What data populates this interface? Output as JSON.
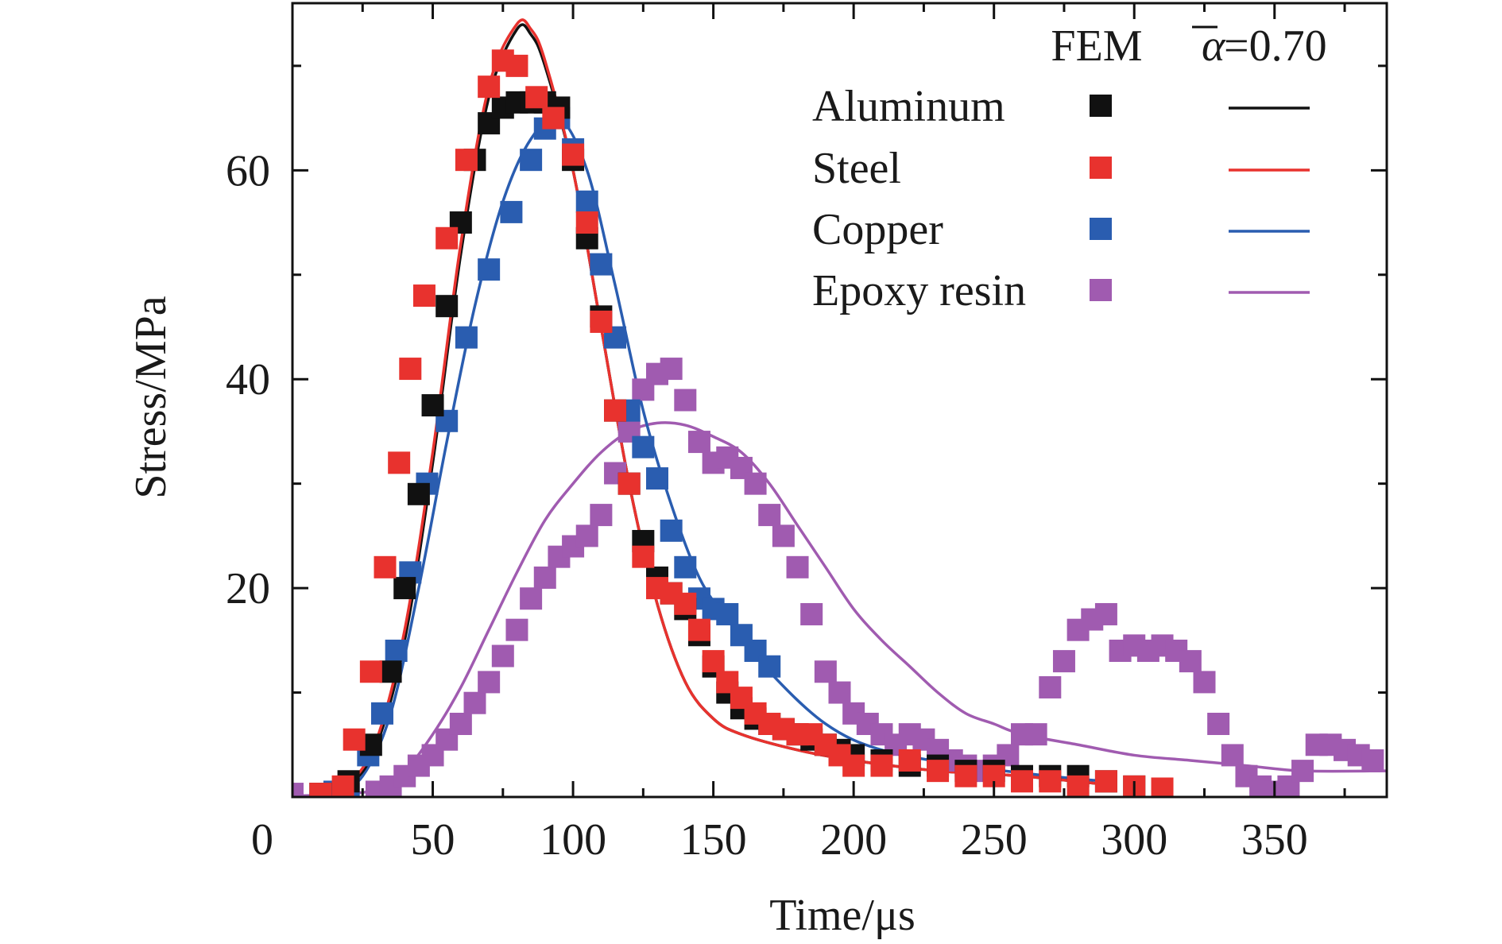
{
  "chart_data": {
    "type": "scatter",
    "xlabel": "Time/μs",
    "ylabel": "Stress/MPa",
    "xlim": [
      0,
      390
    ],
    "ylim": [
      0,
      76
    ],
    "x_ticks": [
      0,
      50,
      100,
      150,
      200,
      250,
      300,
      350
    ],
    "y_ticks": [
      20,
      40,
      60
    ],
    "y_minor_ticks": [
      10,
      30,
      50,
      70
    ],
    "x_minor_ticks": [
      25,
      75,
      125,
      175,
      225,
      275,
      325,
      375
    ],
    "legend": {
      "placement": "top-right",
      "header_experiment": "FEM",
      "header_fit": "=0.70",
      "header_fit_symbol": "α"
    },
    "series": [
      {
        "name": "Aluminum",
        "color": "#111111",
        "points": [
          [
            10,
            0.3
          ],
          [
            20,
            1.5
          ],
          [
            28,
            5
          ],
          [
            35,
            12
          ],
          [
            40,
            20
          ],
          [
            45,
            29
          ],
          [
            50,
            37.5
          ],
          [
            55,
            47
          ],
          [
            60,
            55
          ],
          [
            65,
            61
          ],
          [
            70,
            64.5
          ],
          [
            75,
            66
          ],
          [
            80,
            66.5
          ],
          [
            85,
            66.5
          ],
          [
            90,
            66.5
          ],
          [
            95,
            66
          ],
          [
            100,
            61
          ],
          [
            105,
            53.5
          ],
          [
            110,
            46
          ],
          [
            115,
            37
          ],
          [
            120,
            30
          ],
          [
            125,
            24.5
          ],
          [
            130,
            21
          ],
          [
            135,
            19.5
          ],
          [
            140,
            18
          ],
          [
            145,
            15.5
          ],
          [
            150,
            12.5
          ],
          [
            155,
            10
          ],
          [
            160,
            8.5
          ],
          [
            165,
            7.5
          ],
          [
            170,
            7
          ],
          [
            175,
            6.5
          ],
          [
            180,
            6
          ],
          [
            185,
            5.5
          ],
          [
            190,
            5
          ],
          [
            195,
            4.5
          ],
          [
            200,
            4
          ],
          [
            210,
            3.5
          ],
          [
            220,
            3
          ],
          [
            230,
            3
          ],
          [
            240,
            2.5
          ],
          [
            250,
            2.5
          ],
          [
            260,
            2
          ],
          [
            270,
            2
          ],
          [
            280,
            2
          ],
          [
            290,
            1.5
          ],
          [
            300,
            1
          ]
        ],
        "fit": [
          [
            10,
            0.2
          ],
          [
            20,
            1
          ],
          [
            30,
            5
          ],
          [
            40,
            15
          ],
          [
            50,
            32
          ],
          [
            60,
            52
          ],
          [
            70,
            67
          ],
          [
            80,
            73.5
          ],
          [
            85,
            73
          ],
          [
            90,
            70
          ],
          [
            100,
            60
          ],
          [
            110,
            45
          ],
          [
            120,
            30
          ],
          [
            130,
            18.5
          ],
          [
            140,
            11
          ],
          [
            150,
            7.5
          ],
          [
            160,
            6
          ],
          [
            180,
            4.5
          ],
          [
            200,
            3.5
          ],
          [
            230,
            2.5
          ],
          [
            260,
            2
          ],
          [
            290,
            1.2
          ]
        ]
      },
      {
        "name": "Steel",
        "color": "#e8322e",
        "points": [
          [
            10,
            0.3
          ],
          [
            18,
            1
          ],
          [
            22,
            5.5
          ],
          [
            28,
            12
          ],
          [
            33,
            22
          ],
          [
            38,
            32
          ],
          [
            42,
            41
          ],
          [
            47,
            48
          ],
          [
            55,
            53.5
          ],
          [
            62,
            61
          ],
          [
            70,
            68
          ],
          [
            75,
            70.5
          ],
          [
            80,
            70
          ],
          [
            87,
            67
          ],
          [
            93,
            65
          ],
          [
            100,
            61.5
          ],
          [
            105,
            55
          ],
          [
            110,
            45.5
          ],
          [
            115,
            37
          ],
          [
            120,
            30
          ],
          [
            125,
            23
          ],
          [
            130,
            20
          ],
          [
            135,
            19.5
          ],
          [
            140,
            18.5
          ],
          [
            145,
            16
          ],
          [
            150,
            13
          ],
          [
            155,
            11
          ],
          [
            160,
            9.5
          ],
          [
            165,
            8
          ],
          [
            170,
            7
          ],
          [
            175,
            6.5
          ],
          [
            180,
            6
          ],
          [
            185,
            6
          ],
          [
            190,
            5
          ],
          [
            195,
            4
          ],
          [
            200,
            3
          ],
          [
            210,
            3
          ],
          [
            220,
            3.5
          ],
          [
            230,
            2.5
          ],
          [
            240,
            2
          ],
          [
            250,
            2
          ],
          [
            260,
            1.5
          ],
          [
            270,
            1.5
          ],
          [
            280,
            1
          ],
          [
            290,
            1.5
          ],
          [
            300,
            1
          ],
          [
            310,
            0.8
          ]
        ],
        "fit": [
          [
            10,
            0.2
          ],
          [
            20,
            1.2
          ],
          [
            30,
            5.5
          ],
          [
            40,
            16
          ],
          [
            50,
            33
          ],
          [
            60,
            53
          ],
          [
            70,
            68
          ],
          [
            80,
            74
          ],
          [
            85,
            73.5
          ],
          [
            90,
            70.5
          ],
          [
            100,
            60
          ],
          [
            110,
            45
          ],
          [
            120,
            30
          ],
          [
            130,
            18.5
          ],
          [
            140,
            11
          ],
          [
            150,
            7.5
          ],
          [
            160,
            6
          ],
          [
            180,
            4.5
          ],
          [
            200,
            3.5
          ],
          [
            230,
            2.5
          ],
          [
            260,
            2
          ],
          [
            290,
            1.2
          ]
        ]
      },
      {
        "name": "Copper",
        "color": "#2a5db0",
        "points": [
          [
            15,
            0.5
          ],
          [
            20,
            1
          ],
          [
            27,
            4
          ],
          [
            32,
            8
          ],
          [
            37,
            14
          ],
          [
            42,
            21.5
          ],
          [
            48,
            30
          ],
          [
            55,
            36
          ],
          [
            62,
            44
          ],
          [
            70,
            50.5
          ],
          [
            78,
            56
          ],
          [
            85,
            61
          ],
          [
            90,
            64
          ],
          [
            95,
            65
          ],
          [
            100,
            62
          ],
          [
            105,
            57
          ],
          [
            110,
            51
          ],
          [
            115,
            44
          ],
          [
            120,
            37
          ],
          [
            125,
            33.5
          ],
          [
            130,
            30.5
          ],
          [
            135,
            25.5
          ],
          [
            140,
            22
          ],
          [
            145,
            19
          ],
          [
            150,
            18
          ],
          [
            155,
            17.5
          ],
          [
            160,
            15.5
          ],
          [
            165,
            14
          ],
          [
            170,
            12.5
          ]
        ],
        "fit": [
          [
            15,
            0.3
          ],
          [
            25,
            2
          ],
          [
            35,
            8
          ],
          [
            45,
            20
          ],
          [
            55,
            34
          ],
          [
            65,
            47
          ],
          [
            75,
            57
          ],
          [
            85,
            63
          ],
          [
            95,
            65
          ],
          [
            105,
            60
          ],
          [
            115,
            49
          ],
          [
            125,
            37
          ],
          [
            135,
            28
          ],
          [
            145,
            21
          ],
          [
            155,
            17
          ],
          [
            170,
            12
          ],
          [
            190,
            7
          ],
          [
            210,
            4.5
          ],
          [
            240,
            3
          ],
          [
            270,
            2
          ],
          [
            290,
            1.5
          ]
        ]
      },
      {
        "name": "Epoxy resin",
        "color": "#a05bb0",
        "points": [
          [
            0,
            0.3
          ],
          [
            10,
            0.3
          ],
          [
            20,
            0.3
          ],
          [
            30,
            0.5
          ],
          [
            35,
            1
          ],
          [
            40,
            2
          ],
          [
            45,
            3
          ],
          [
            50,
            4
          ],
          [
            55,
            5.5
          ],
          [
            60,
            7
          ],
          [
            65,
            9
          ],
          [
            70,
            11
          ],
          [
            75,
            13.5
          ],
          [
            80,
            16
          ],
          [
            85,
            19
          ],
          [
            90,
            21
          ],
          [
            95,
            23
          ],
          [
            100,
            24
          ],
          [
            105,
            25
          ],
          [
            110,
            27
          ],
          [
            115,
            31
          ],
          [
            120,
            35
          ],
          [
            125,
            39
          ],
          [
            130,
            40.5
          ],
          [
            135,
            41
          ],
          [
            140,
            38
          ],
          [
            145,
            34
          ],
          [
            150,
            32
          ],
          [
            155,
            32.5
          ],
          [
            160,
            31.5
          ],
          [
            165,
            30
          ],
          [
            170,
            27
          ],
          [
            175,
            25
          ],
          [
            180,
            22
          ],
          [
            185,
            17.5
          ],
          [
            190,
            12
          ],
          [
            195,
            10
          ],
          [
            200,
            8
          ],
          [
            205,
            7
          ],
          [
            210,
            6
          ],
          [
            215,
            5
          ],
          [
            220,
            6
          ],
          [
            225,
            5.5
          ],
          [
            230,
            4.5
          ],
          [
            235,
            3.5
          ],
          [
            240,
            3
          ],
          [
            245,
            2.5
          ],
          [
            250,
            3
          ],
          [
            255,
            4
          ],
          [
            260,
            6
          ],
          [
            265,
            6
          ],
          [
            270,
            10.5
          ],
          [
            275,
            13
          ],
          [
            280,
            16
          ],
          [
            285,
            17
          ],
          [
            290,
            17.5
          ],
          [
            295,
            14
          ],
          [
            300,
            14.5
          ],
          [
            305,
            14
          ],
          [
            310,
            14.5
          ],
          [
            315,
            14
          ],
          [
            320,
            13
          ],
          [
            325,
            11
          ],
          [
            330,
            7
          ],
          [
            335,
            4
          ],
          [
            340,
            2
          ],
          [
            345,
            1
          ],
          [
            350,
            0.5
          ],
          [
            355,
            1
          ],
          [
            360,
            2.5
          ],
          [
            365,
            5
          ],
          [
            370,
            5
          ],
          [
            375,
            4.5
          ],
          [
            380,
            4
          ],
          [
            385,
            3.5
          ]
        ],
        "fit": [
          [
            0,
            0.1
          ],
          [
            20,
            0.3
          ],
          [
            30,
            0.8
          ],
          [
            40,
            2.5
          ],
          [
            50,
            6
          ],
          [
            60,
            10.5
          ],
          [
            70,
            16
          ],
          [
            80,
            21.5
          ],
          [
            90,
            26.5
          ],
          [
            100,
            30
          ],
          [
            110,
            33
          ],
          [
            120,
            35
          ],
          [
            130,
            35.8
          ],
          [
            140,
            35.6
          ],
          [
            150,
            34.5
          ],
          [
            160,
            33
          ],
          [
            170,
            30
          ],
          [
            180,
            26
          ],
          [
            190,
            22
          ],
          [
            200,
            18
          ],
          [
            210,
            15
          ],
          [
            220,
            12.5
          ],
          [
            230,
            10
          ],
          [
            240,
            8
          ],
          [
            250,
            7
          ],
          [
            260,
            6
          ],
          [
            280,
            5
          ],
          [
            300,
            4
          ],
          [
            320,
            3.5
          ],
          [
            340,
            3
          ],
          [
            360,
            2.5
          ],
          [
            390,
            2.5
          ]
        ]
      }
    ]
  }
}
